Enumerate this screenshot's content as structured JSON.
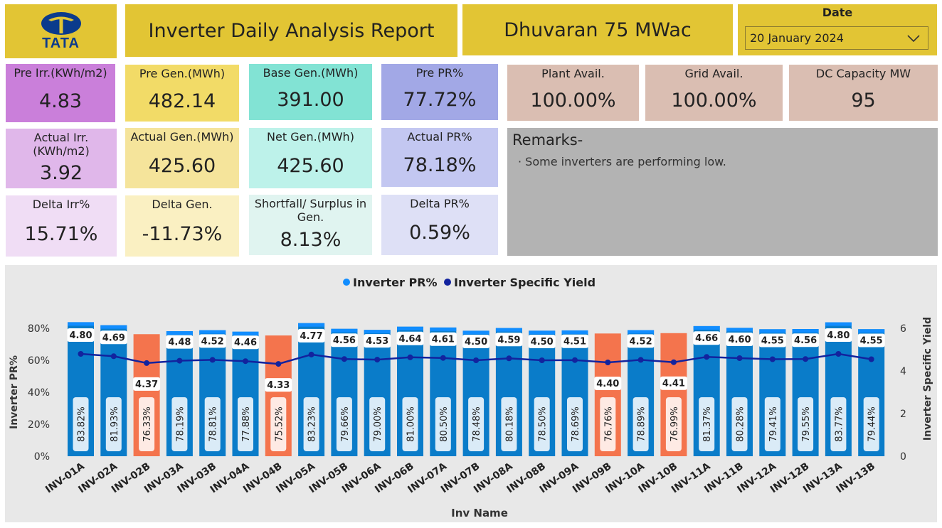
{
  "header": {
    "logo_text": "TATA",
    "title": "Inverter Daily Analysis Report",
    "plant": "Dhuvaran 75 MWac",
    "date_label": "Date",
    "date_value": "20 January 2024"
  },
  "kpis": {
    "pre_irr": {
      "label": "Pre Irr.(KWh/m2)",
      "value": "4.83"
    },
    "pre_gen": {
      "label": "Pre Gen.(MWh)",
      "value": "482.14"
    },
    "base_gen": {
      "label": "Base Gen.(MWh)",
      "value": "391.00"
    },
    "pre_pr": {
      "label": "Pre PR%",
      "value": "77.72%"
    },
    "actual_irr": {
      "label": "Actual Irr.(KWh/m2)",
      "value": "3.92"
    },
    "actual_gen": {
      "label": "Actual Gen.(MWh)",
      "value": "425.60"
    },
    "net_gen": {
      "label": "Net Gen.(MWh)",
      "value": "425.60"
    },
    "actual_pr": {
      "label": "Actual PR%",
      "value": "78.18%"
    },
    "delta_irr": {
      "label": "Delta Irr%",
      "value": "15.71%"
    },
    "delta_gen": {
      "label": "Delta Gen.",
      "value": "-11.73%"
    },
    "shortfall": {
      "label": "Shortfall/ Surplus in Gen.",
      "value": "8.13%"
    },
    "delta_pr": {
      "label": "Delta PR%",
      "value": "0.59%"
    },
    "plant_avail": {
      "label": "Plant Avail.",
      "value": "100.00%"
    },
    "grid_avail": {
      "label": "Grid Avail.",
      "value": "100.00%"
    },
    "dc_capacity": {
      "label": "DC Capacity MW",
      "value": "95"
    }
  },
  "remarks": {
    "title": "Remarks-",
    "items": [
      "Some inverters are performing low."
    ]
  },
  "colors": {
    "bar_normal": "#0A7CC9",
    "bar_low": "#F4744D",
    "bar_cap": "#118DFF",
    "line": "#12239E",
    "header_bg": "#E2C534",
    "remarks_bg": "#B3B3B3",
    "chart_bg": "#E8E8E8"
  },
  "chart_data": {
    "type": "bar",
    "legend": [
      "Inverter PR%",
      "Inverter Specific Yield"
    ],
    "legend_position": "top-center",
    "xlabel": "Inv Name",
    "ylabel": "Inverter PR%",
    "y2label": "Inverter Specific Yield",
    "ylim": [
      0,
      80
    ],
    "y2lim": [
      0,
      6
    ],
    "y_ticks": [
      "0%",
      "20%",
      "40%",
      "60%",
      "80%"
    ],
    "y2_ticks": [
      "0",
      "2",
      "4",
      "6"
    ],
    "categories": [
      "INV-01A",
      "INV-02A",
      "INV-02B",
      "INV-03A",
      "INV-03B",
      "INV-04A",
      "INV-04B",
      "INV-05A",
      "INV-05B",
      "INV-06A",
      "INV-06B",
      "INV-07A",
      "INV-07B",
      "INV-08A",
      "INV-08B",
      "INV-09A",
      "INV-09B",
      "INV-10A",
      "INV-10B",
      "INV-11A",
      "INV-11B",
      "INV-12A",
      "INV-12B",
      "INV-13A",
      "INV-13B"
    ],
    "series": [
      {
        "name": "Inverter PR%",
        "type": "bar",
        "values": [
          83.82,
          81.93,
          76.33,
          78.19,
          78.81,
          77.88,
          75.52,
          83.23,
          79.66,
          79.0,
          81.0,
          80.5,
          78.48,
          80.18,
          78.5,
          78.69,
          76.76,
          78.89,
          76.99,
          81.37,
          80.28,
          79.41,
          79.55,
          83.77,
          79.44
        ],
        "labels": [
          "83.82%",
          "81.93%",
          "76.33%",
          "78.19%",
          "78.81%",
          "77.88%",
          "75.52%",
          "83.23%",
          "79.66%",
          "79.00%",
          "81.00%",
          "80.50%",
          "78.48%",
          "80.18%",
          "78.50%",
          "78.69%",
          "76.76%",
          "78.89%",
          "76.99%",
          "81.37%",
          "80.28%",
          "79.41%",
          "79.55%",
          "83.77%",
          "79.44%"
        ],
        "low_flags": [
          false,
          false,
          true,
          false,
          false,
          false,
          true,
          false,
          false,
          false,
          false,
          false,
          false,
          false,
          false,
          false,
          true,
          false,
          true,
          false,
          false,
          false,
          false,
          false,
          false
        ]
      },
      {
        "name": "Inverter Specific Yield",
        "type": "line",
        "values": [
          4.8,
          4.69,
          4.37,
          4.48,
          4.52,
          4.46,
          4.33,
          4.77,
          4.56,
          4.53,
          4.64,
          4.61,
          4.5,
          4.59,
          4.5,
          4.51,
          4.4,
          4.52,
          4.41,
          4.66,
          4.6,
          4.55,
          4.56,
          4.8,
          4.55
        ],
        "labels": [
          "4.80",
          "4.69",
          "4.37",
          "4.48",
          "4.52",
          "4.46",
          "4.33",
          "4.77",
          "4.56",
          "4.53",
          "4.64",
          "4.61",
          "4.50",
          "4.59",
          "4.50",
          "4.51",
          "4.40",
          "4.52",
          "4.41",
          "4.66",
          "4.60",
          "4.55",
          "4.56",
          "4.80",
          "4.55"
        ]
      }
    ]
  }
}
